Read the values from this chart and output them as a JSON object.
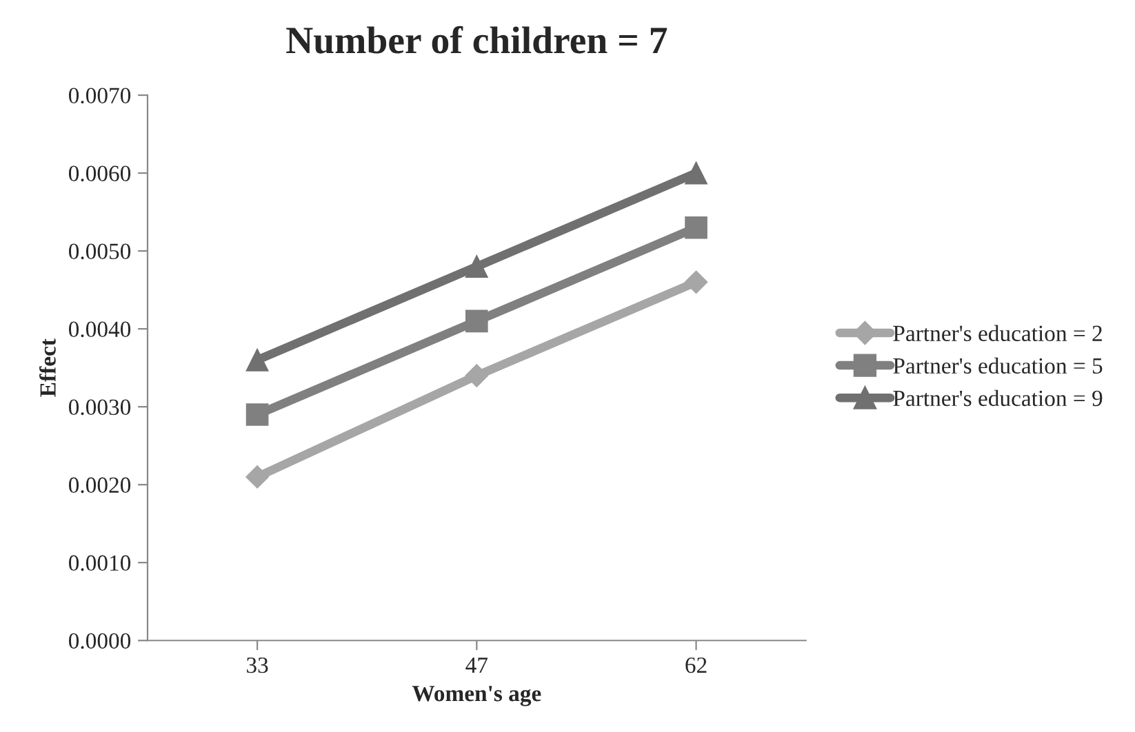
{
  "chart_data": {
    "type": "line",
    "title": "Number of children = 7",
    "xlabel": "Women's age",
    "ylabel": "Effect",
    "categories": [
      "33",
      "47",
      "62"
    ],
    "series": [
      {
        "name": "Partner's education = 2",
        "color": "#a6a6a6",
        "marker": "diamond",
        "values": [
          0.0021,
          0.0034,
          0.0046
        ]
      },
      {
        "name": "Partner's education = 5",
        "color": "#808080",
        "marker": "square",
        "values": [
          0.0029,
          0.0041,
          0.0053
        ]
      },
      {
        "name": "Partner's education = 9",
        "color": "#707070",
        "marker": "triangle",
        "values": [
          0.0036,
          0.0048,
          0.006
        ]
      }
    ],
    "ylim": [
      0,
      0.007
    ],
    "yticks": [
      {
        "value": 0,
        "label": "0.0000"
      },
      {
        "value": 0.001,
        "label": "0.0010"
      },
      {
        "value": 0.002,
        "label": "0.0020"
      },
      {
        "value": 0.003,
        "label": "0.0030"
      },
      {
        "value": 0.004,
        "label": "0.0040"
      },
      {
        "value": 0.005,
        "label": "0.0050"
      },
      {
        "value": 0.006,
        "label": "0.0060"
      },
      {
        "value": 0.007,
        "label": "0.0070"
      }
    ],
    "legend": "right",
    "grid": false,
    "line_style": "solid"
  }
}
